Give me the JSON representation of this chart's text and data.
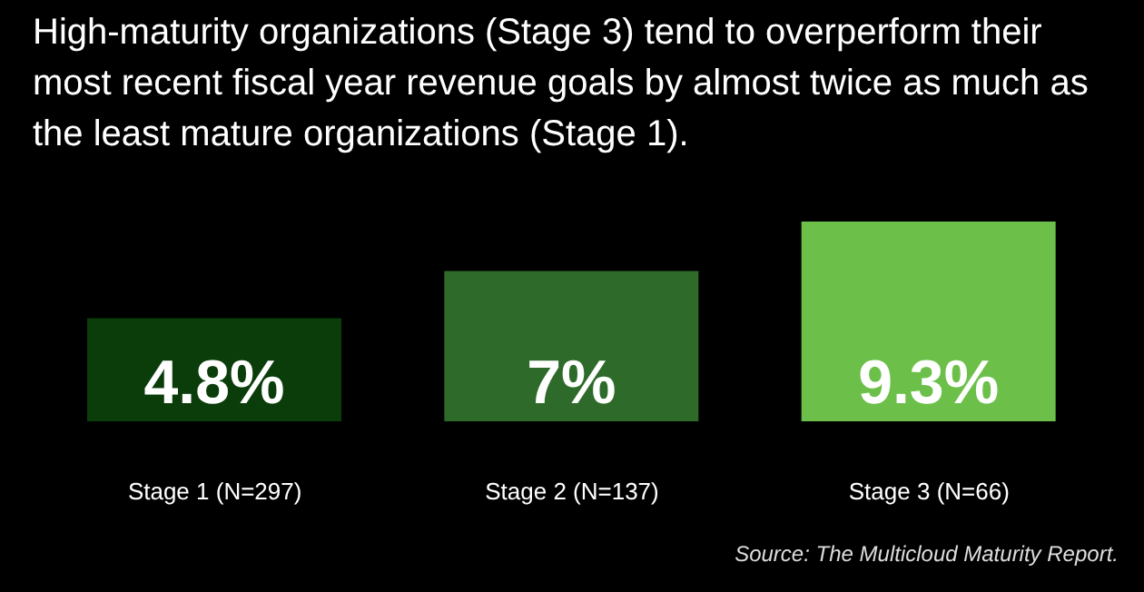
{
  "chart_data": {
    "type": "bar",
    "title": "High-maturity organizations (Stage 3) tend to overperform their most recent fiscal year revenue goals by almost twice as much as the least mature organizations (Stage 1).",
    "categories": [
      "Stage 1 (N=297)",
      "Stage 2 (N=137)",
      "Stage 3 (N=66)"
    ],
    "values": [
      4.8,
      7,
      9.3
    ],
    "colors": [
      "#0b3d0b",
      "#2e6b2a",
      "#6cc04a"
    ],
    "value_labels": [
      "4.8%",
      "7%",
      "9.3%"
    ],
    "ylim": [
      0,
      9.3
    ],
    "tick_labels": "x",
    "annotations": [
      "Source: The Multicloud Maturity Report."
    ]
  }
}
